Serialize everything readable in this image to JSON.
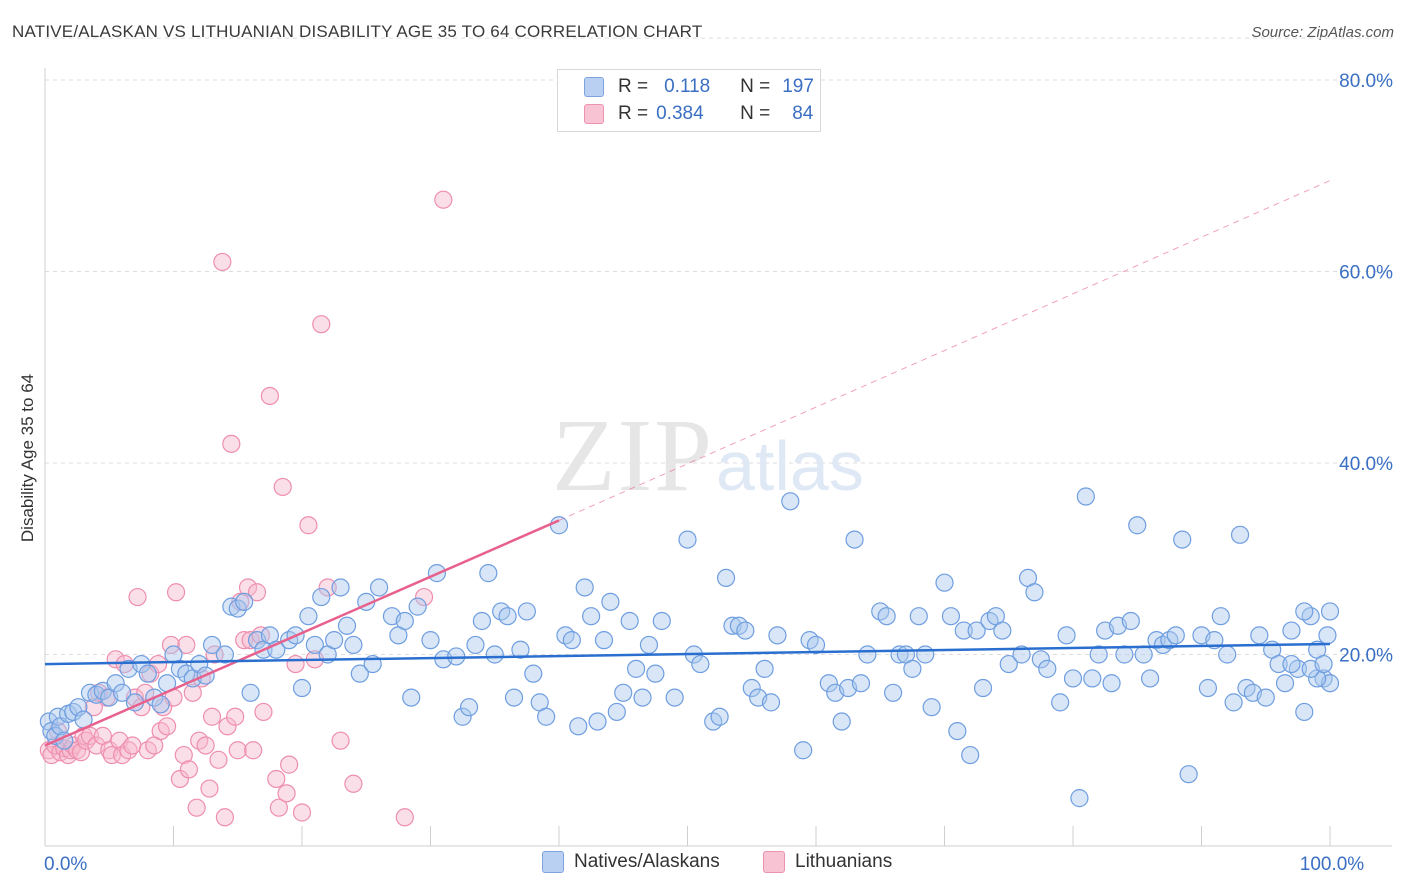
{
  "title": "NATIVE/ALASKAN VS LITHUANIAN DISABILITY AGE 35 TO 64 CORRELATION CHART",
  "source": "Source: ZipAtlas.com",
  "watermark": {
    "zip": "ZIP",
    "atlas": "atlas"
  },
  "legend": {
    "r_label": "R =",
    "n_label": "N =",
    "rows": [
      {
        "r": "0.118",
        "n": "197",
        "fill": "#b9d0f2",
        "stroke": "#7ea4de"
      },
      {
        "r": "0.384",
        "n": "84",
        "fill": "#f8c3d3",
        "stroke": "#ec93b0"
      }
    ]
  },
  "colors": {
    "blue_fill": "#a9c7ee",
    "blue_stroke": "#6f9ee0",
    "blue_line": "#2a6fd0",
    "pink_fill": "#f6b7cb",
    "pink_stroke": "#ee8eaf",
    "pink_line": "#e8608c",
    "axis_text": "#3a6fc4",
    "grid": "#dcdcdc"
  },
  "chart_data": {
    "type": "scatter",
    "title": "NATIVE/ALASKAN VS LITHUANIAN DISABILITY AGE 35 TO 64 CORRELATION CHART",
    "xlabel": "",
    "ylabel": "Disability Age 35 to 64",
    "xlim": [
      0,
      100
    ],
    "ylim": [
      0,
      85
    ],
    "x_ticks": [
      {
        "value": 0,
        "label": "0.0%"
      },
      {
        "value": 100,
        "label": "100.0%"
      }
    ],
    "y_ticks": [
      {
        "value": 20,
        "label": "20.0%"
      },
      {
        "value": 40,
        "label": "40.0%"
      },
      {
        "value": 60,
        "label": "60.0%"
      },
      {
        "value": 80,
        "label": "80.0%"
      }
    ],
    "grid": "horizontal dashed",
    "legend_position": "top-center",
    "series": [
      {
        "name": "Natives/Alaskans",
        "trend": {
          "x": [
            0,
            100
          ],
          "y": [
            19.0,
            21.1
          ]
        },
        "points": [
          [
            0.3,
            13.0
          ],
          [
            0.5,
            12.0
          ],
          [
            0.8,
            11.5
          ],
          [
            1.0,
            13.5
          ],
          [
            1.2,
            12.5
          ],
          [
            1.5,
            11.0
          ],
          [
            1.8,
            13.8
          ],
          [
            2.2,
            14.0
          ],
          [
            2.6,
            14.5
          ],
          [
            3.0,
            13.2
          ],
          [
            3.5,
            16.0
          ],
          [
            4.0,
            15.8
          ],
          [
            4.5,
            16.2
          ],
          [
            5.0,
            15.5
          ],
          [
            5.5,
            17.0
          ],
          [
            6.0,
            16.0
          ],
          [
            6.5,
            18.5
          ],
          [
            7.0,
            15.0
          ],
          [
            7.5,
            19.0
          ],
          [
            8.0,
            18.0
          ],
          [
            8.5,
            15.5
          ],
          [
            9.0,
            14.8
          ],
          [
            9.5,
            17.0
          ],
          [
            10.0,
            20.0
          ],
          [
            10.5,
            18.5
          ],
          [
            11.0,
            18.0
          ],
          [
            11.5,
            17.5
          ],
          [
            12.0,
            19.0
          ],
          [
            12.5,
            17.8
          ],
          [
            13.0,
            21.0
          ],
          [
            14.0,
            20.0
          ],
          [
            14.5,
            25.0
          ],
          [
            15.0,
            24.8
          ],
          [
            15.5,
            25.5
          ],
          [
            16.0,
            16.0
          ],
          [
            16.5,
            21.5
          ],
          [
            17.0,
            20.5
          ],
          [
            17.5,
            22.0
          ],
          [
            18.0,
            20.5
          ],
          [
            19.0,
            21.5
          ],
          [
            19.5,
            22.0
          ],
          [
            20.0,
            16.5
          ],
          [
            20.5,
            24.0
          ],
          [
            21.0,
            21.0
          ],
          [
            21.5,
            26.0
          ],
          [
            22.0,
            20.0
          ],
          [
            22.5,
            21.5
          ],
          [
            23.0,
            27.0
          ],
          [
            23.5,
            23.0
          ],
          [
            24.0,
            21.0
          ],
          [
            24.5,
            18.0
          ],
          [
            25.0,
            25.5
          ],
          [
            25.5,
            19.0
          ],
          [
            26.0,
            27.0
          ],
          [
            27.0,
            24.0
          ],
          [
            27.5,
            22.0
          ],
          [
            28.0,
            23.5
          ],
          [
            28.5,
            15.5
          ],
          [
            29.0,
            25.0
          ],
          [
            30.0,
            21.5
          ],
          [
            30.5,
            28.5
          ],
          [
            31.0,
            19.5
          ],
          [
            32.0,
            19.8
          ],
          [
            32.5,
            13.5
          ],
          [
            33.0,
            14.5
          ],
          [
            33.5,
            21.0
          ],
          [
            34.0,
            23.5
          ],
          [
            34.5,
            28.5
          ],
          [
            35.0,
            20.0
          ],
          [
            35.5,
            24.5
          ],
          [
            36.0,
            24.0
          ],
          [
            36.5,
            15.5
          ],
          [
            37.0,
            20.5
          ],
          [
            37.5,
            24.5
          ],
          [
            38.0,
            18.0
          ],
          [
            38.5,
            15.0
          ],
          [
            39.0,
            13.5
          ],
          [
            40.0,
            33.5
          ],
          [
            40.5,
            22.0
          ],
          [
            41.0,
            21.5
          ],
          [
            41.5,
            12.5
          ],
          [
            42.0,
            27.0
          ],
          [
            42.5,
            24.0
          ],
          [
            43.0,
            13.0
          ],
          [
            43.5,
            21.5
          ],
          [
            44.0,
            25.5
          ],
          [
            44.5,
            14.0
          ],
          [
            45.0,
            16.0
          ],
          [
            45.5,
            23.5
          ],
          [
            46.0,
            18.5
          ],
          [
            46.5,
            15.5
          ],
          [
            47.0,
            21.0
          ],
          [
            47.5,
            18.0
          ],
          [
            48.0,
            23.5
          ],
          [
            49.0,
            15.5
          ],
          [
            50.0,
            32.0
          ],
          [
            50.5,
            20.0
          ],
          [
            51.0,
            19.0
          ],
          [
            52.0,
            13.0
          ],
          [
            52.5,
            13.5
          ],
          [
            53.0,
            28.0
          ],
          [
            53.5,
            23.0
          ],
          [
            54.0,
            23.0
          ],
          [
            54.5,
            22.5
          ],
          [
            55.0,
            16.5
          ],
          [
            55.5,
            15.5
          ],
          [
            56.0,
            18.5
          ],
          [
            56.5,
            15.0
          ],
          [
            57.0,
            22.0
          ],
          [
            58.0,
            36.0
          ],
          [
            59.0,
            10.0
          ],
          [
            59.5,
            21.5
          ],
          [
            60.0,
            21.0
          ],
          [
            61.0,
            17.0
          ],
          [
            61.5,
            16.0
          ],
          [
            62.0,
            13.0
          ],
          [
            62.5,
            16.5
          ],
          [
            63.0,
            32.0
          ],
          [
            63.5,
            17.0
          ],
          [
            64.0,
            20.0
          ],
          [
            65.0,
            24.5
          ],
          [
            65.5,
            24.0
          ],
          [
            66.0,
            16.0
          ],
          [
            66.5,
            20.0
          ],
          [
            67.0,
            20.0
          ],
          [
            67.5,
            18.5
          ],
          [
            68.0,
            24.0
          ],
          [
            68.5,
            20.0
          ],
          [
            69.0,
            14.5
          ],
          [
            70.0,
            27.5
          ],
          [
            70.5,
            24.0
          ],
          [
            71.0,
            12.0
          ],
          [
            71.5,
            22.5
          ],
          [
            72.0,
            9.5
          ],
          [
            72.5,
            22.5
          ],
          [
            73.0,
            16.5
          ],
          [
            73.5,
            23.5
          ],
          [
            74.0,
            24.0
          ],
          [
            74.5,
            22.5
          ],
          [
            75.0,
            19.0
          ],
          [
            76.0,
            20.0
          ],
          [
            76.5,
            28.0
          ],
          [
            77.0,
            26.5
          ],
          [
            77.5,
            19.5
          ],
          [
            78.0,
            18.5
          ],
          [
            79.0,
            15.0
          ],
          [
            79.5,
            22.0
          ],
          [
            80.0,
            17.5
          ],
          [
            80.5,
            5.0
          ],
          [
            81.0,
            36.5
          ],
          [
            81.5,
            17.5
          ],
          [
            82.0,
            20.0
          ],
          [
            82.5,
            22.5
          ],
          [
            83.0,
            17.0
          ],
          [
            83.5,
            23.0
          ],
          [
            84.0,
            20.0
          ],
          [
            84.5,
            23.5
          ],
          [
            85.0,
            33.5
          ],
          [
            85.5,
            20.0
          ],
          [
            86.0,
            17.5
          ],
          [
            86.5,
            21.5
          ],
          [
            87.0,
            21.0
          ],
          [
            87.5,
            21.5
          ],
          [
            88.0,
            22.0
          ],
          [
            88.5,
            32.0
          ],
          [
            89.0,
            7.5
          ],
          [
            90.0,
            22.0
          ],
          [
            90.5,
            16.5
          ],
          [
            91.0,
            21.5
          ],
          [
            91.5,
            24.0
          ],
          [
            92.0,
            20.0
          ],
          [
            92.5,
            15.0
          ],
          [
            93.0,
            32.5
          ],
          [
            93.5,
            16.5
          ],
          [
            94.0,
            16.0
          ],
          [
            94.5,
            22.0
          ],
          [
            95.0,
            15.5
          ],
          [
            95.5,
            20.5
          ],
          [
            96.0,
            19.0
          ],
          [
            96.5,
            17.0
          ],
          [
            97.0,
            22.5
          ],
          [
            97.5,
            18.5
          ],
          [
            98.0,
            14.0
          ],
          [
            98.5,
            24.0
          ],
          [
            99.0,
            20.5
          ],
          [
            99.5,
            17.5
          ],
          [
            100.0,
            17.0
          ],
          [
            99.8,
            22.0
          ],
          [
            99.0,
            17.5
          ],
          [
            98.0,
            24.5
          ],
          [
            97.0,
            19.0
          ],
          [
            98.5,
            18.5
          ],
          [
            99.5,
            19.0
          ],
          [
            100.0,
            24.5
          ]
        ]
      },
      {
        "name": "Lithuanians",
        "trend": {
          "x": [
            0,
            40
          ],
          "y": [
            10.5,
            34.0
          ]
        },
        "trend_extended": {
          "x": [
            40,
            100
          ],
          "y": [
            34.0,
            69.5
          ]
        },
        "points": [
          [
            0.3,
            10.0
          ],
          [
            0.5,
            9.5
          ],
          [
            0.8,
            10.5
          ],
          [
            1.0,
            12.0
          ],
          [
            1.2,
            9.8
          ],
          [
            1.5,
            10.2
          ],
          [
            1.8,
            9.5
          ],
          [
            2.0,
            10.0
          ],
          [
            2.2,
            10.5
          ],
          [
            2.5,
            10.0
          ],
          [
            2.8,
            9.8
          ],
          [
            3.0,
            11.5
          ],
          [
            3.2,
            11.0
          ],
          [
            3.5,
            11.5
          ],
          [
            3.8,
            14.5
          ],
          [
            4.0,
            10.5
          ],
          [
            4.2,
            16.0
          ],
          [
            4.5,
            11.5
          ],
          [
            4.8,
            15.5
          ],
          [
            5.0,
            10.0
          ],
          [
            5.2,
            9.5
          ],
          [
            5.5,
            19.5
          ],
          [
            5.8,
            11.0
          ],
          [
            6.0,
            9.5
          ],
          [
            6.2,
            19.0
          ],
          [
            6.5,
            10.0
          ],
          [
            6.8,
            10.5
          ],
          [
            7.0,
            15.5
          ],
          [
            7.2,
            26.0
          ],
          [
            7.5,
            14.5
          ],
          [
            7.8,
            16.0
          ],
          [
            8.0,
            10.0
          ],
          [
            8.2,
            18.0
          ],
          [
            8.5,
            10.5
          ],
          [
            8.8,
            19.0
          ],
          [
            9.0,
            12.0
          ],
          [
            9.2,
            14.5
          ],
          [
            9.5,
            12.5
          ],
          [
            9.8,
            21.0
          ],
          [
            10.0,
            15.5
          ],
          [
            10.2,
            26.5
          ],
          [
            10.5,
            7.0
          ],
          [
            10.8,
            9.5
          ],
          [
            11.0,
            21.0
          ],
          [
            11.2,
            8.0
          ],
          [
            11.5,
            16.0
          ],
          [
            11.8,
            4.0
          ],
          [
            12.0,
            11.0
          ],
          [
            12.2,
            17.5
          ],
          [
            12.5,
            10.5
          ],
          [
            12.8,
            6.0
          ],
          [
            13.0,
            13.5
          ],
          [
            13.2,
            20.0
          ],
          [
            13.5,
            9.0
          ],
          [
            13.8,
            61.0
          ],
          [
            14.0,
            3.0
          ],
          [
            14.2,
            12.5
          ],
          [
            14.5,
            42.0
          ],
          [
            14.8,
            13.5
          ],
          [
            15.0,
            10.0
          ],
          [
            15.2,
            25.5
          ],
          [
            15.5,
            21.5
          ],
          [
            15.8,
            27.0
          ],
          [
            16.0,
            21.5
          ],
          [
            16.2,
            10.0
          ],
          [
            16.5,
            26.5
          ],
          [
            16.8,
            22.0
          ],
          [
            17.0,
            14.0
          ],
          [
            17.5,
            47.0
          ],
          [
            18.0,
            7.0
          ],
          [
            18.2,
            4.0
          ],
          [
            18.5,
            37.5
          ],
          [
            18.8,
            5.5
          ],
          [
            19.0,
            8.5
          ],
          [
            19.5,
            19.0
          ],
          [
            20.0,
            3.5
          ],
          [
            20.5,
            33.5
          ],
          [
            21.0,
            19.5
          ],
          [
            21.5,
            54.5
          ],
          [
            22.0,
            27.0
          ],
          [
            23.0,
            11.0
          ],
          [
            24.0,
            6.5
          ],
          [
            28.0,
            3.0
          ],
          [
            31.0,
            67.5
          ],
          [
            29.5,
            26.0
          ]
        ]
      }
    ]
  }
}
